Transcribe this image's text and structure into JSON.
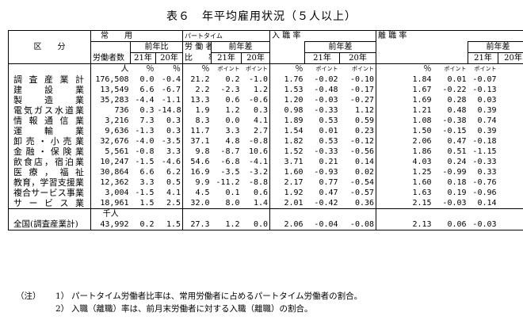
{
  "title": "表６　年平均雇用状況（５人以上）",
  "header": {
    "kubun": "区　　分",
    "joyo": "常　　用",
    "rodosha": "労働者数",
    "zennenhi": "前年比",
    "y21": "21年",
    "y20": "20年",
    "parttime": "パートタイム",
    "parttime2": "労 働 者",
    "hiritsu": "比　　率",
    "zennensa": "前年差",
    "nyushoku": "入 職 率",
    "rishoku": "離 職 率",
    "unit_hito": "人",
    "unit_pct": "％",
    "unit_pt": "ポイント",
    "unit_sennin": "千人"
  },
  "rows": [
    {
      "name": "調査産業計",
      "v": [
        "176,508",
        "0.0",
        "-0.4",
        "21.2",
        "0.2",
        "-1.0",
        "1.76",
        "-0.02",
        "-0.10",
        "1.84",
        "0.01",
        "-0.07"
      ]
    },
    {
      "name": "建設業",
      "v": [
        "13,549",
        "6.6",
        "-6.7",
        "2.2",
        "-2.3",
        "1.2",
        "1.53",
        "-0.48",
        "-0.17",
        "1.67",
        "-0.22",
        "-0.13"
      ]
    },
    {
      "name": "製造業",
      "v": [
        "35,283",
        "-4.4",
        "-1.1",
        "13.3",
        "0.6",
        "-0.6",
        "1.20",
        "-0.03",
        "-0.27",
        "1.69",
        "0.28",
        "0.03"
      ]
    },
    {
      "name": "電気ガス水道業",
      "v": [
        "736",
        "0.3",
        "-14.8",
        "1.9",
        "1.2",
        "0.3",
        "0.98",
        "-0.33",
        "1.12",
        "1.21",
        "0.48",
        "0.39"
      ]
    },
    {
      "name": "情報通信業",
      "v": [
        "3,216",
        "7.3",
        "0.3",
        "8.3",
        "0.0",
        "4.1",
        "1.89",
        "0.53",
        "0.59",
        "1.08",
        "-0.38",
        "0.74"
      ]
    },
    {
      "name": "運輸業",
      "v": [
        "9,636",
        "-1.3",
        "0.3",
        "11.7",
        "3.3",
        "2.7",
        "1.54",
        "0.01",
        "0.23",
        "1.50",
        "-0.15",
        "0.39"
      ]
    },
    {
      "name": "卸売・小売業",
      "v": [
        "32,676",
        "-4.0",
        "-3.5",
        "37.1",
        "4.8",
        "-0.8",
        "1.82",
        "0.53",
        "-0.12",
        "2.06",
        "0.47",
        "-0.18"
      ]
    },
    {
      "name": "金融・保険業",
      "v": [
        "5,561",
        "-0.8",
        "3.3",
        "9.8",
        "-8.7",
        "10.6",
        "1.52",
        "-0.33",
        "-0.56",
        "1.86",
        "0.51",
        "-1.15"
      ]
    },
    {
      "name": "飲食店，宿泊業",
      "v": [
        "10,247",
        "-1.5",
        "-4.6",
        "54.6",
        "-6.8",
        "-4.1",
        "3.71",
        "0.21",
        "0.14",
        "4.03",
        "0.24",
        "-0.33"
      ]
    },
    {
      "name": "医療，福祉",
      "v": [
        "30,864",
        "6.6",
        "6.2",
        "16.9",
        "-3.5",
        "-3.2",
        "1.60",
        "-0.93",
        "0.02",
        "1.25",
        "-0.99",
        "0.33"
      ]
    },
    {
      "name": "教育，学習支援業",
      "v": [
        "12,362",
        "3.3",
        "0.5",
        "9.9",
        "-11.2",
        "-8.8",
        "2.17",
        "0.77",
        "-0.54",
        "1.60",
        "0.18",
        "-0.76"
      ]
    },
    {
      "name": "複合サービス事業",
      "v": [
        "3,004",
        "-1.5",
        "4.1",
        "4.5",
        "0.1",
        "0.6",
        "1.92",
        "0.47",
        "-0.57",
        "1.63",
        "0.19",
        "-0.96"
      ]
    },
    {
      "name": "サービス業",
      "v": [
        "18,961",
        "1.5",
        "2.5",
        "32.0",
        "8.0",
        "1.4",
        "2.01",
        "-0.42",
        "0.36",
        "2.15",
        "-0.03",
        "0.14"
      ]
    }
  ],
  "total": {
    "name": "全国(調査産業計)",
    "v": [
      "43,992",
      "0.2",
      "1.5",
      "27.3",
      "1.2",
      "0.0",
      "2.06",
      "-0.04",
      "-0.08",
      "2.13",
      "0.06",
      "-0.03"
    ]
  },
  "notes": {
    "label": "（注）",
    "n1_idx": "1）",
    "n1": "パートタイム労働者比率は、常用労働者に占めるパートタイム労働者の割合。",
    "n2_idx": "2）",
    "n2": "入職（離職）率は、前月末労働者に対する入職（離職）の割合。"
  }
}
